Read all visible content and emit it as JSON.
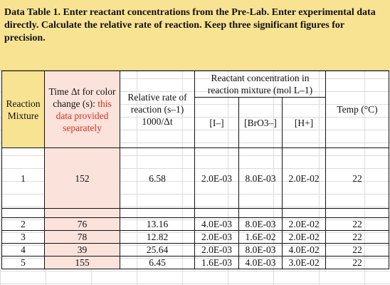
{
  "instructions": {
    "text": "Data Table 1. Enter reactant concentrations from the Pre-Lab. Enter experimental data directly. Calculate the relative rate of reaction. Keep three significant figures for precision."
  },
  "table": {
    "headers": {
      "reaction_mixture": "Reaction Mixture",
      "time_prefix": "Time Δt for color change (s): ",
      "time_note": "this data provided separately",
      "relative_rate": "Relative rate of reaction (s–1) 1000/Δt",
      "reactant_group": "Reactant concentration in reaction mixture (mol L–1)",
      "iodide": "[I–]",
      "bromate": "[BrO3–]",
      "hydrogen": "[H+]",
      "temp": "Temp (°C)"
    },
    "rows": [
      {
        "mixture": "1",
        "time": "152",
        "rate": "6.58",
        "iodide": "2.0E-03",
        "bromate": "8.0E-03",
        "hydrogen": "2.0E-02",
        "temp": "22"
      },
      {
        "mixture": "2",
        "time": "76",
        "rate": "13.16",
        "iodide": "4.0E-03",
        "bromate": "8.0E-03",
        "hydrogen": "2.0E-02",
        "temp": "22"
      },
      {
        "mixture": "3",
        "time": "78",
        "rate": "12.82",
        "iodide": "2.0E-03",
        "bromate": "1.6E-02",
        "hydrogen": "2.0E-02",
        "temp": "22"
      },
      {
        "mixture": "4",
        "time": "39",
        "rate": "25.64",
        "iodide": "2.0E-03",
        "bromate": "8.0E-03",
        "hydrogen": "4.0E-02",
        "temp": "22"
      },
      {
        "mixture": "5",
        "time": "155",
        "rate": "6.45",
        "iodide": "1.6E-03",
        "bromate": "4.0E-03",
        "hydrogen": "3.0E-02",
        "temp": "22"
      }
    ]
  },
  "colors": {
    "instructions_bg": "#f8e393",
    "time_column_bg": "#fbe3dc",
    "note_text": "#d9301f"
  }
}
